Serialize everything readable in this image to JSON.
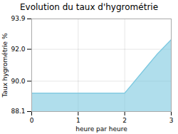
{
  "chart_data": {
    "type": "area",
    "title": "Evolution du taux d'hygrométrie",
    "xlabel": "heure par heure",
    "ylabel": "Taux hygrométrie %",
    "x": [
      0,
      0.1,
      0.2,
      0.3,
      0.4,
      0.5,
      0.6,
      0.7,
      0.8,
      0.9,
      1.0,
      1.1,
      1.2,
      1.3,
      1.4,
      1.5,
      1.6,
      1.7,
      1.8,
      1.9,
      2.0,
      2.1,
      2.2,
      2.3,
      2.4,
      2.5,
      2.6,
      2.7,
      2.8,
      2.9,
      3.0
    ],
    "values": [
      89.25,
      89.25,
      89.25,
      89.25,
      89.25,
      89.25,
      89.25,
      89.25,
      89.25,
      89.25,
      89.25,
      89.25,
      89.25,
      89.25,
      89.25,
      89.25,
      89.25,
      89.25,
      89.25,
      89.25,
      89.25,
      89.6,
      89.95,
      90.3,
      90.65,
      91.0,
      91.35,
      91.7,
      92.0,
      92.3,
      92.6
    ],
    "color": "#7cc8e0",
    "xlim": [
      0,
      3
    ],
    "ylim": [
      88.1,
      93.9
    ],
    "xticks": [
      0,
      1,
      2,
      3
    ],
    "yticks": [
      88.1,
      {
        "value": 90,
        "label": "90.0"
      },
      {
        "value": 92,
        "label": "92.0"
      },
      93.9
    ],
    "grid": true
  }
}
